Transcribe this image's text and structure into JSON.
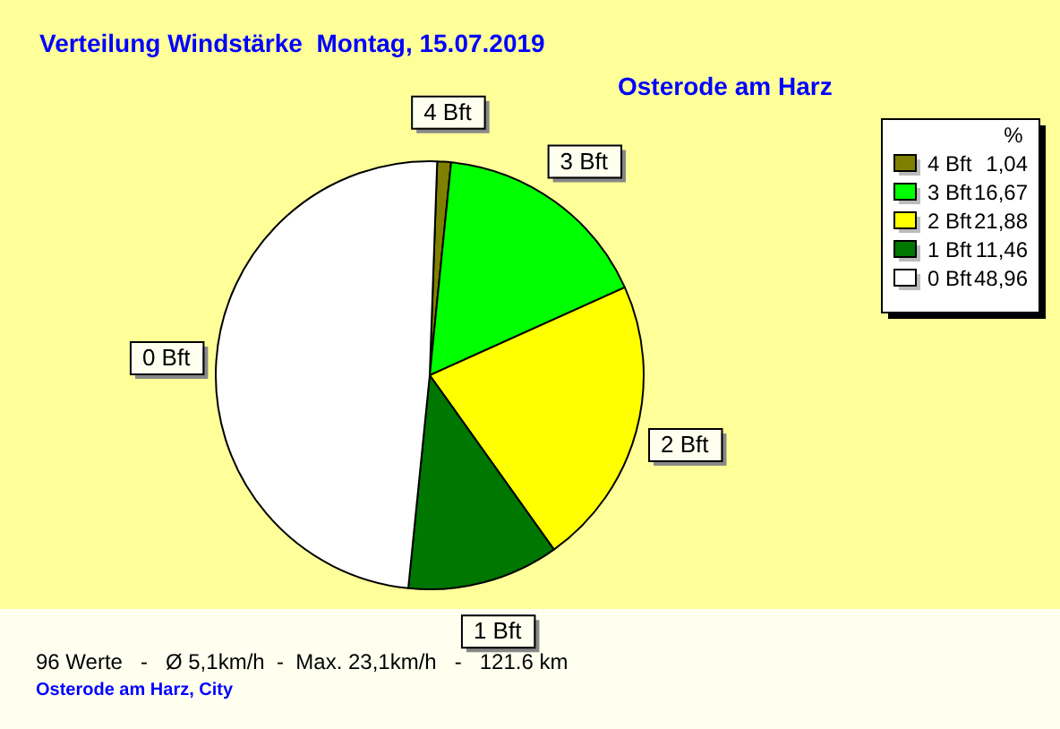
{
  "chart_data": {
    "type": "pie",
    "title": "Verteilung Windstärke  Montag, 15.07.2019",
    "subtitle": "Osterode am Harz",
    "categories": [
      "4 Bft",
      "3 Bft",
      "2 Bft",
      "1 Bft",
      "0 Bft"
    ],
    "values": [
      1.04,
      16.67,
      21.88,
      11.46,
      48.96
    ],
    "value_labels": [
      "1,04",
      "16,67",
      "21,88",
      "11,46",
      "48,96"
    ],
    "colors": [
      "#808000",
      "#00ff00",
      "#ffff00",
      "#007700",
      "#ffffff"
    ],
    "legend": "top right",
    "legend_title": "%",
    "annotations": [
      "96 Werte   -   Ø 5,1km/h  -  Max. 23,1km/h   -   121.6 km",
      "Osterode am Harz, City"
    ]
  }
}
